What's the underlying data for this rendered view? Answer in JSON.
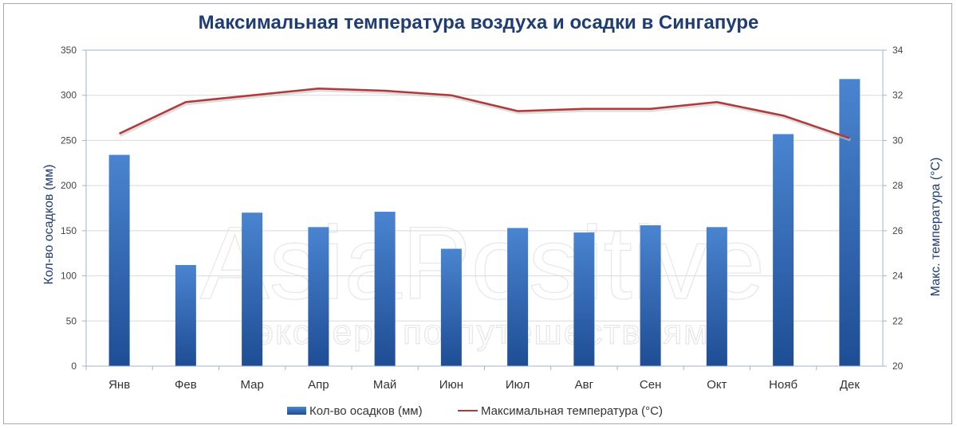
{
  "chart_data": {
    "type": "bar",
    "title": "Максимальная температура воздуха и осадки в Сингапуре",
    "categories": [
      "Янв",
      "Фев",
      "Мар",
      "Апр",
      "Май",
      "Июн",
      "Июл",
      "Авг",
      "Сен",
      "Окт",
      "Нояб",
      "Дек"
    ],
    "series": [
      {
        "name": "Кол-во осадков (мм)",
        "type": "bar",
        "axis": "left",
        "color": "#3a6fb8",
        "values": [
          234,
          112,
          170,
          154,
          171,
          130,
          153,
          148,
          156,
          154,
          257,
          318
        ]
      },
      {
        "name": "Максимальная температура  (°С)",
        "type": "line",
        "axis": "right",
        "color": "#b03a3a",
        "values": [
          30.3,
          31.7,
          32.0,
          32.3,
          32.2,
          32.0,
          31.3,
          31.4,
          31.4,
          31.7,
          31.1,
          30.1
        ]
      }
    ],
    "ylabel": "Кол-во осадков (мм)",
    "ylim": [
      0,
      350
    ],
    "yticks": [
      "0",
      "50",
      "100",
      "150",
      "200",
      "250",
      "300",
      "350"
    ],
    "y2label": "Макс. температура  (°С)",
    "y2lim": [
      20,
      34
    ],
    "y2ticks": [
      "20",
      "22",
      "24",
      "26",
      "28",
      "30",
      "32",
      "34"
    ],
    "grid": true,
    "legend_position": "bottom"
  },
  "watermark": {
    "brand": "AsiaPositive",
    "tagline": "эксперт по путешествиям"
  },
  "colors": {
    "title": "#1f3d73",
    "bar": "#3a6fb8",
    "line": "#b03a3a",
    "grid": "#d9d9d9",
    "plot_border": "#9fb3d1"
  }
}
